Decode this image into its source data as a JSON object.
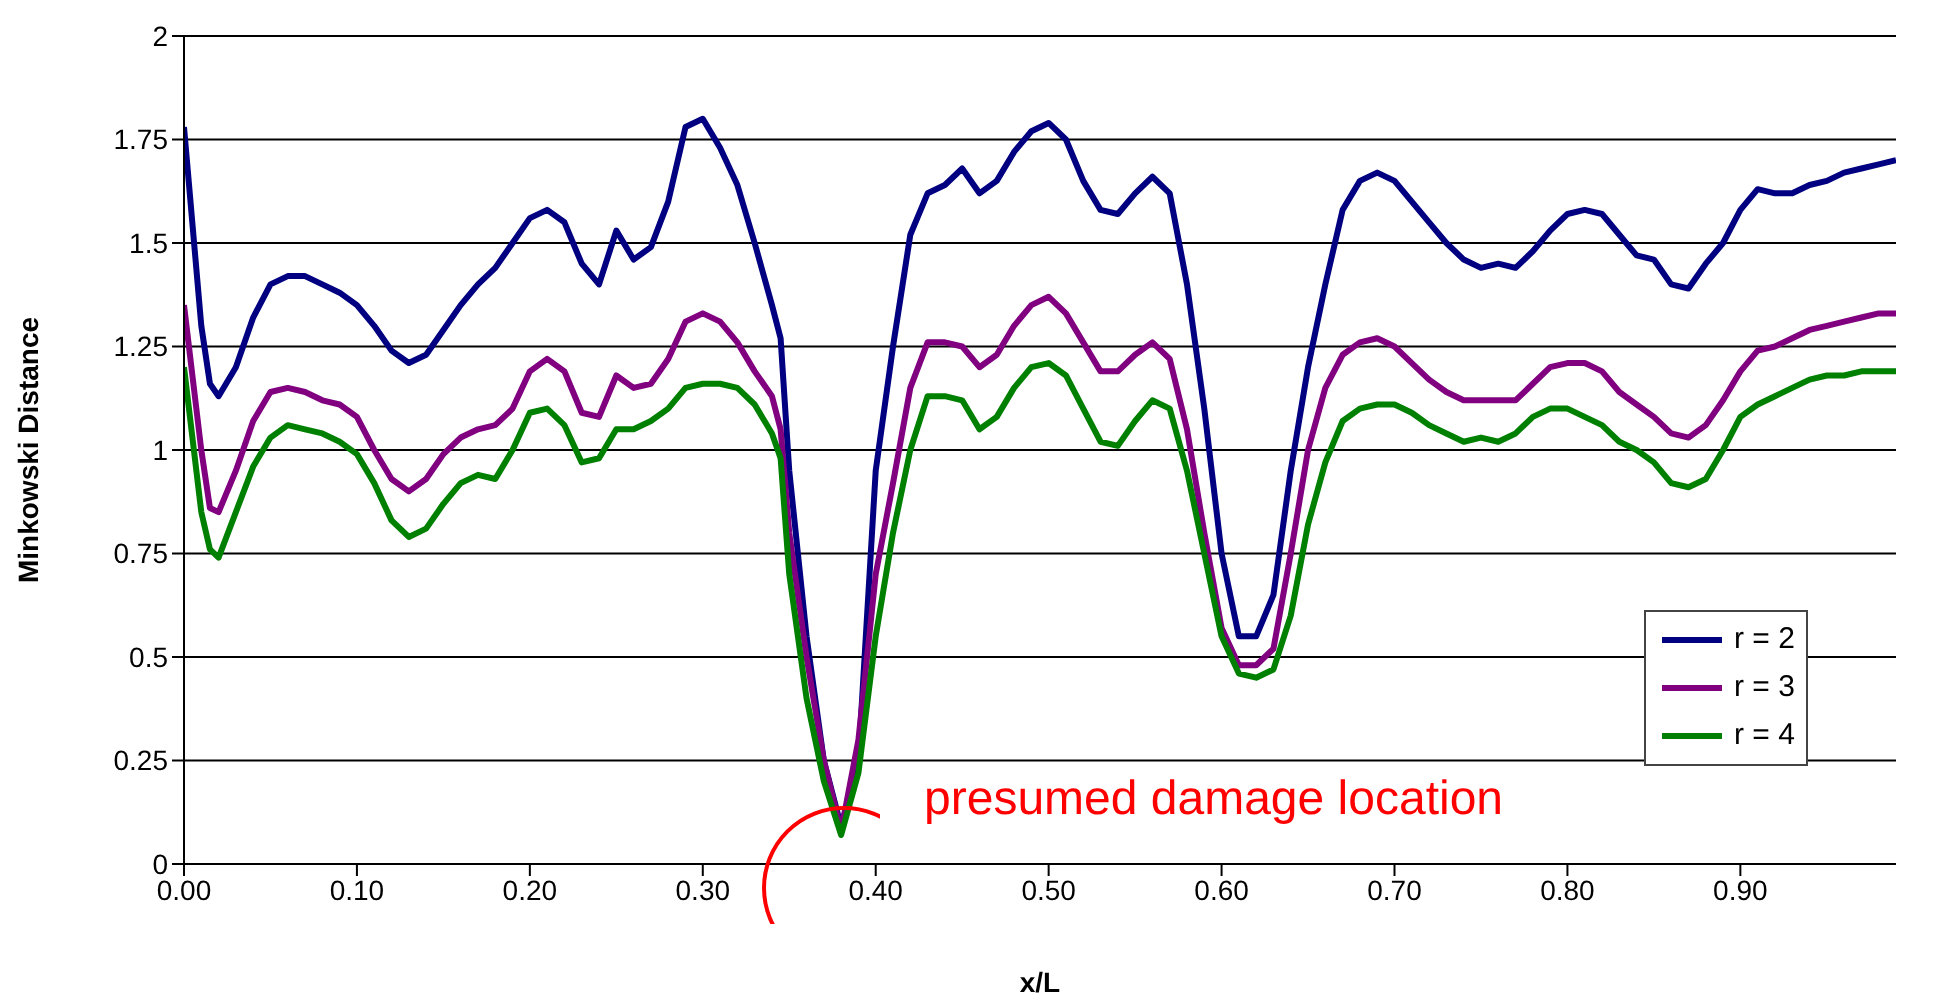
{
  "chart_data": {
    "type": "line",
    "xlabel": "x/L",
    "ylabel": "Minkowski Distance",
    "x": [
      0,
      0.01,
      0.015,
      0.02,
      0.03,
      0.04,
      0.05,
      0.06,
      0.07,
      0.08,
      0.09,
      0.1,
      0.11,
      0.12,
      0.13,
      0.14,
      0.15,
      0.16,
      0.17,
      0.18,
      0.19,
      0.2,
      0.21,
      0.22,
      0.23,
      0.24,
      0.25,
      0.26,
      0.27,
      0.28,
      0.29,
      0.3,
      0.31,
      0.32,
      0.33,
      0.34,
      0.345,
      0.35,
      0.36,
      0.37,
      0.38,
      0.39,
      0.4,
      0.41,
      0.42,
      0.43,
      0.44,
      0.45,
      0.46,
      0.47,
      0.48,
      0.49,
      0.5,
      0.51,
      0.52,
      0.53,
      0.54,
      0.55,
      0.56,
      0.57,
      0.58,
      0.59,
      0.6,
      0.61,
      0.62,
      0.63,
      0.64,
      0.65,
      0.66,
      0.67,
      0.68,
      0.69,
      0.7,
      0.71,
      0.72,
      0.73,
      0.74,
      0.75,
      0.76,
      0.77,
      0.78,
      0.79,
      0.8,
      0.81,
      0.82,
      0.83,
      0.84,
      0.85,
      0.86,
      0.87,
      0.88,
      0.89,
      0.9,
      0.91,
      0.92,
      0.93,
      0.94,
      0.95,
      0.96,
      0.97,
      0.98,
      0.99
    ],
    "series": [
      {
        "name": "r = 2",
        "color": "#000080",
        "values": [
          1.78,
          1.3,
          1.16,
          1.13,
          1.2,
          1.32,
          1.4,
          1.42,
          1.42,
          1.4,
          1.38,
          1.35,
          1.3,
          1.24,
          1.21,
          1.23,
          1.29,
          1.35,
          1.4,
          1.44,
          1.5,
          1.56,
          1.58,
          1.55,
          1.45,
          1.4,
          1.53,
          1.46,
          1.49,
          1.6,
          1.78,
          1.8,
          1.73,
          1.64,
          1.5,
          1.35,
          1.27,
          0.95,
          0.55,
          0.25,
          0.09,
          0.25,
          0.95,
          1.25,
          1.52,
          1.62,
          1.64,
          1.68,
          1.62,
          1.65,
          1.72,
          1.77,
          1.79,
          1.75,
          1.65,
          1.58,
          1.57,
          1.62,
          1.66,
          1.62,
          1.4,
          1.1,
          0.75,
          0.55,
          0.55,
          0.65,
          0.95,
          1.2,
          1.4,
          1.58,
          1.65,
          1.67,
          1.65,
          1.6,
          1.55,
          1.5,
          1.46,
          1.44,
          1.45,
          1.44,
          1.48,
          1.53,
          1.57,
          1.58,
          1.57,
          1.52,
          1.47,
          1.46,
          1.4,
          1.39,
          1.45,
          1.5,
          1.58,
          1.63,
          1.62,
          1.62,
          1.64,
          1.65,
          1.67,
          1.68,
          1.69,
          1.7
        ]
      },
      {
        "name": "r = 3",
        "color": "#800080",
        "values": [
          1.35,
          1.0,
          0.86,
          0.85,
          0.95,
          1.07,
          1.14,
          1.15,
          1.14,
          1.12,
          1.11,
          1.08,
          1.0,
          0.93,
          0.9,
          0.93,
          0.99,
          1.03,
          1.05,
          1.06,
          1.1,
          1.19,
          1.22,
          1.19,
          1.09,
          1.08,
          1.18,
          1.15,
          1.16,
          1.22,
          1.31,
          1.33,
          1.31,
          1.26,
          1.19,
          1.13,
          1.05,
          0.8,
          0.5,
          0.25,
          0.08,
          0.3,
          0.7,
          0.92,
          1.15,
          1.26,
          1.26,
          1.25,
          1.2,
          1.23,
          1.3,
          1.35,
          1.37,
          1.33,
          1.26,
          1.19,
          1.19,
          1.23,
          1.26,
          1.22,
          1.05,
          0.8,
          0.57,
          0.48,
          0.48,
          0.52,
          0.75,
          1.0,
          1.15,
          1.23,
          1.26,
          1.27,
          1.25,
          1.21,
          1.17,
          1.14,
          1.12,
          1.12,
          1.12,
          1.12,
          1.16,
          1.2,
          1.21,
          1.21,
          1.19,
          1.14,
          1.11,
          1.08,
          1.04,
          1.03,
          1.06,
          1.12,
          1.19,
          1.24,
          1.25,
          1.27,
          1.29,
          1.3,
          1.31,
          1.32,
          1.33,
          1.33
        ]
      },
      {
        "name": "r = 4",
        "color": "#008000",
        "values": [
          1.2,
          0.85,
          0.76,
          0.74,
          0.85,
          0.96,
          1.03,
          1.06,
          1.05,
          1.04,
          1.02,
          0.99,
          0.92,
          0.83,
          0.79,
          0.81,
          0.87,
          0.92,
          0.94,
          0.93,
          1.0,
          1.09,
          1.1,
          1.06,
          0.97,
          0.98,
          1.05,
          1.05,
          1.07,
          1.1,
          1.15,
          1.16,
          1.16,
          1.15,
          1.11,
          1.04,
          0.98,
          0.7,
          0.4,
          0.2,
          0.07,
          0.22,
          0.55,
          0.8,
          1.0,
          1.13,
          1.13,
          1.12,
          1.05,
          1.08,
          1.15,
          1.2,
          1.21,
          1.18,
          1.1,
          1.02,
          1.01,
          1.07,
          1.12,
          1.1,
          0.95,
          0.75,
          0.55,
          0.46,
          0.45,
          0.47,
          0.6,
          0.82,
          0.97,
          1.07,
          1.1,
          1.11,
          1.11,
          1.09,
          1.06,
          1.04,
          1.02,
          1.03,
          1.02,
          1.04,
          1.08,
          1.1,
          1.1,
          1.08,
          1.06,
          1.02,
          1.0,
          0.97,
          0.92,
          0.91,
          0.93,
          1.0,
          1.08,
          1.11,
          1.13,
          1.15,
          1.17,
          1.18,
          1.18,
          1.19,
          1.19,
          1.19
        ]
      }
    ],
    "xlim": [
      0,
      0.99
    ],
    "xticks": [
      {
        "value": 0,
        "label": "0.00"
      },
      {
        "value": 0.1,
        "label": "0.10"
      },
      {
        "value": 0.2,
        "label": "0.20"
      },
      {
        "value": 0.3,
        "label": "0.30"
      },
      {
        "value": 0.4,
        "label": "0.40"
      },
      {
        "value": 0.5,
        "label": "0.50"
      },
      {
        "value": 0.6,
        "label": "0.60"
      },
      {
        "value": 0.7,
        "label": "0.70"
      },
      {
        "value": 0.8,
        "label": "0.80"
      },
      {
        "value": 0.9,
        "label": "0.90"
      }
    ],
    "ylim": [
      0,
      2
    ],
    "yticks": [
      0,
      0.25,
      0.5,
      0.75,
      1,
      1.25,
      1.5,
      1.75,
      2
    ],
    "grid": "y",
    "legend": "bottom right",
    "marker": "none",
    "line_style": "solid",
    "annotations": [
      "presumed damage location"
    ]
  }
}
